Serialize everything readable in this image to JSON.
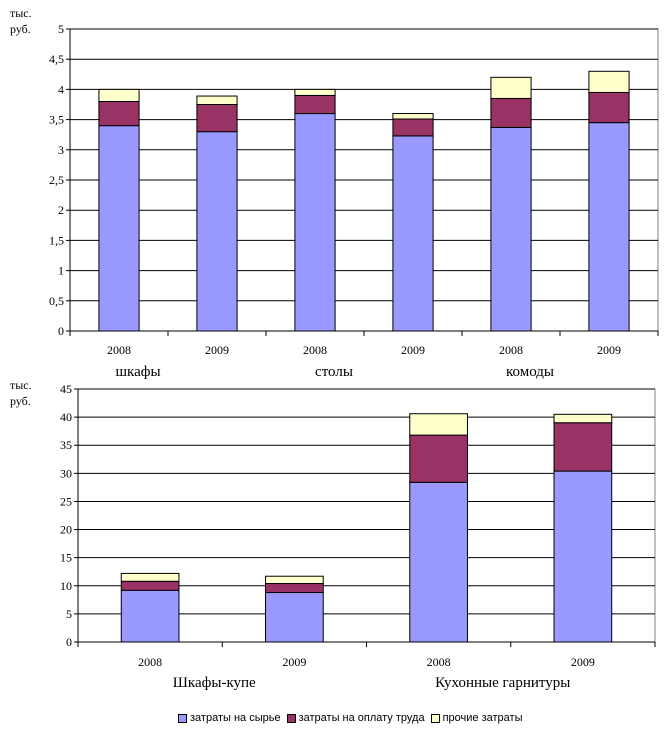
{
  "chart_data": [
    {
      "type": "bar",
      "stacked": true,
      "ylabel": "тыс. руб.",
      "ylim": [
        0,
        5
      ],
      "yticks": [
        "0",
        "0,5",
        "1",
        "1,5",
        "2",
        "2,5",
        "3",
        "3,5",
        "4",
        "4,5",
        "5"
      ],
      "grid": true,
      "categories": [
        "2008",
        "2009",
        "2008",
        "2009",
        "2008",
        "2009"
      ],
      "groups": [
        "шкафы",
        "столы",
        "комоды"
      ],
      "series": [
        {
          "name": "затраты на сырье",
          "values": [
            3.4,
            3.3,
            3.6,
            3.23,
            3.37,
            3.45
          ]
        },
        {
          "name": "затраты на оплату труда",
          "values": [
            0.4,
            0.45,
            0.3,
            0.28,
            0.48,
            0.5
          ]
        },
        {
          "name": "прочие затраты",
          "values": [
            0.2,
            0.14,
            0.1,
            0.09,
            0.35,
            0.35
          ]
        }
      ]
    },
    {
      "type": "bar",
      "stacked": true,
      "ylabel": "тыс. руб.",
      "ylim": [
        0,
        45
      ],
      "yticks": [
        "0",
        "5",
        "10",
        "15",
        "20",
        "25",
        "30",
        "35",
        "40",
        "45"
      ],
      "grid": true,
      "categories": [
        "2008",
        "2009",
        "2008",
        "2009"
      ],
      "groups": [
        "Шкафы-купе",
        "Кухонные гарнитуры"
      ],
      "series": [
        {
          "name": "затраты на сырье",
          "values": [
            9.2,
            8.8,
            28.4,
            30.4
          ]
        },
        {
          "name": "затраты на оплату труда",
          "values": [
            1.6,
            1.6,
            8.4,
            8.6
          ]
        },
        {
          "name": "прочие затраты",
          "values": [
            1.4,
            1.3,
            3.8,
            1.5
          ]
        }
      ]
    }
  ],
  "colors": {
    "raw": "#9999ff",
    "labor": "#993366",
    "other": "#ffffcc",
    "grid": "#000000"
  },
  "legend": {
    "placement": "bottom",
    "items": [
      {
        "label": "затраты на сырье"
      },
      {
        "label": "затраты на оплату труда"
      },
      {
        "label": "прочие затраты"
      }
    ]
  }
}
